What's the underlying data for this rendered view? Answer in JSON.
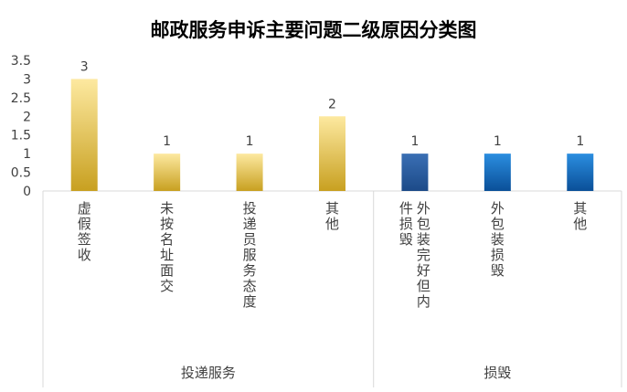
{
  "chart_data": {
    "type": "bar",
    "title": "邮政服务申诉主要问题二级原因分类图",
    "xlabel": "",
    "ylabel": "",
    "ylim": [
      0,
      3.5
    ],
    "yticks": [
      0,
      0.5,
      1,
      1.5,
      2,
      2.5,
      3,
      3.5
    ],
    "ytick_labels": [
      "0",
      "0.5",
      "1",
      "1.5",
      "2",
      "2.5",
      "3",
      "3.5"
    ],
    "grid": false,
    "legend": "none",
    "categories": [
      "虚假签收",
      "未按名址面交",
      "投递员服务态度",
      "其他",
      "外包装完好但内件损毁",
      "外包装损毁",
      "其他"
    ],
    "values": [
      3,
      1,
      1,
      2,
      1,
      1,
      1
    ],
    "data_labels": [
      "3",
      "1",
      "1",
      "2",
      "1",
      "1",
      "1"
    ],
    "groups": [
      {
        "label": "投递服务",
        "count": 4
      },
      {
        "label": "损毁",
        "count": 3
      }
    ],
    "colors": {
      "gold_top": "#fde9a0",
      "gold_bottom": "#c8a020",
      "blue_dark_top": "#3a6fb4",
      "blue_dark_bottom": "#1c4a88",
      "blue_top": "#2b8ee0",
      "blue_bottom": "#0a4f98",
      "axis": "#d9d9d9",
      "text": "#404040",
      "title": "#000000"
    }
  }
}
